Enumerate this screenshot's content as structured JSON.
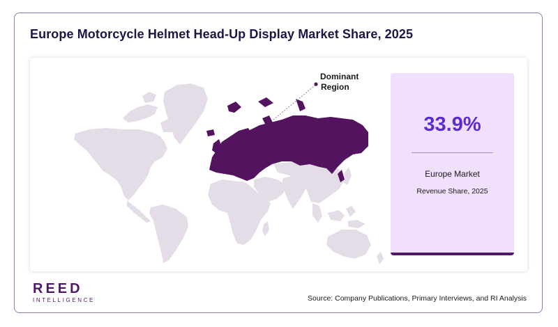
{
  "title": "Europe Motorcycle Helmet Head-Up Display Market Share, 2025",
  "map": {
    "highlight_region": "Europe",
    "annotation_line1": "Dominant",
    "annotation_line2": "Region",
    "colors": {
      "land": "#e4dde8",
      "highlight": "#53135f"
    }
  },
  "stat": {
    "value": "33.9%",
    "label": "Europe Market",
    "sublabel": "Revenue Share, 2025",
    "colors": {
      "background": "#f1e0fb",
      "value": "#5b2ad0",
      "border": "#4d1968"
    }
  },
  "logo": {
    "main": "REED",
    "sub": "INTELLIGENCE"
  },
  "source": "Source: Company Publications, Primary Interviews, and RI Analysis"
}
